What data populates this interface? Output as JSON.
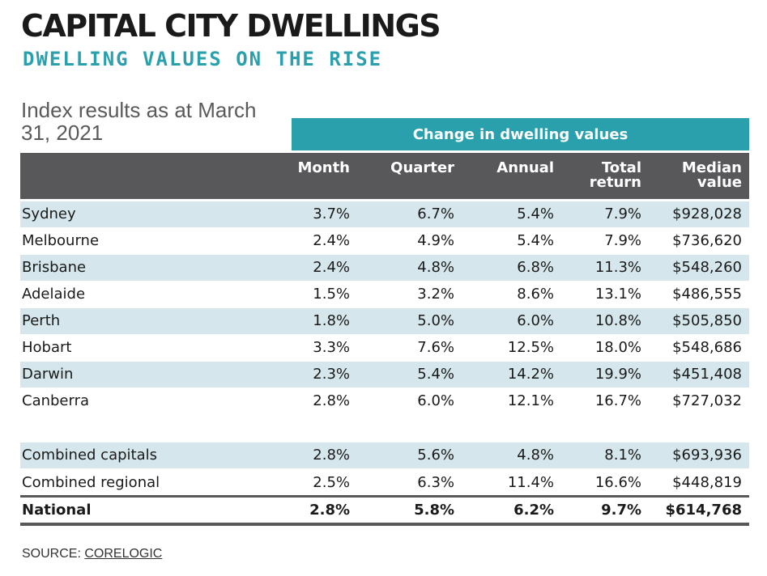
{
  "title": "CAPITAL CITY DWELLINGS",
  "subtitle": "DWELLING VALUES ON THE RISE",
  "index_note": "Index results as at March 31, 2021",
  "source": {
    "prefix": "SOURCE: ",
    "link_label": "CORELOGIC"
  },
  "chart_data": {
    "type": "table",
    "title": "CAPITAL CITY DWELLINGS",
    "subtitle": "DWELLING VALUES ON THE RISE",
    "group_header": "Change in dwelling values",
    "columns": [
      "Month",
      "Quarter",
      "Annual",
      "Total\nreturn",
      "Median\nvalue"
    ],
    "rows": [
      {
        "name": "Sydney",
        "values": [
          "3.7%",
          "6.7%",
          "5.4%",
          "7.9%",
          "$928,028"
        ]
      },
      {
        "name": "Melbourne",
        "values": [
          "2.4%",
          "4.9%",
          "5.4%",
          "7.9%",
          "$736,620"
        ]
      },
      {
        "name": "Brisbane",
        "values": [
          "2.4%",
          "4.8%",
          "6.8%",
          "11.3%",
          "$548,260"
        ]
      },
      {
        "name": "Adelaide",
        "values": [
          "1.5%",
          "3.2%",
          "8.6%",
          "13.1%",
          "$486,555"
        ]
      },
      {
        "name": "Perth",
        "values": [
          "1.8%",
          "5.0%",
          "6.0%",
          "10.8%",
          "$505,850"
        ]
      },
      {
        "name": "Hobart",
        "values": [
          "3.3%",
          "7.6%",
          "12.5%",
          "18.0%",
          "$548,686"
        ]
      },
      {
        "name": "Darwin",
        "values": [
          "2.3%",
          "5.4%",
          "14.2%",
          "19.9%",
          "$451,408"
        ]
      },
      {
        "name": "Canberra",
        "values": [
          "2.8%",
          "6.0%",
          "12.1%",
          "16.7%",
          "$727,032"
        ]
      },
      {
        "name": "Combined capitals",
        "values": [
          "2.8%",
          "5.6%",
          "4.8%",
          "8.1%",
          "$693,936"
        ]
      },
      {
        "name": "Combined regional",
        "values": [
          "2.5%",
          "6.3%",
          "11.4%",
          "16.6%",
          "$448,819"
        ]
      },
      {
        "name": "National",
        "values": [
          "2.8%",
          "5.8%",
          "6.2%",
          "9.7%",
          "$614,768"
        ]
      }
    ]
  }
}
